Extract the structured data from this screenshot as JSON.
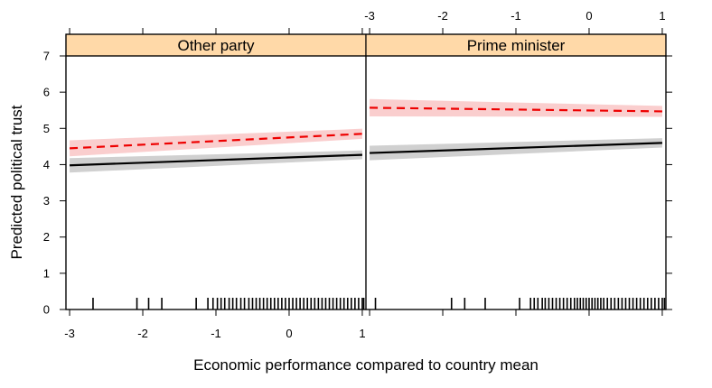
{
  "chart_data": {
    "type": "line",
    "xlabel": "Economic performance compared to country mean",
    "ylabel": "Predicted political trust",
    "xlim": [
      -3.05,
      1.05
    ],
    "ylim": [
      0,
      7
    ],
    "x_ticks": [
      -3,
      -2,
      -1,
      0,
      1
    ],
    "y_ticks": [
      0,
      1,
      2,
      3,
      4,
      5,
      6,
      7
    ],
    "strip_color": "#ffd9a8",
    "panels": [
      {
        "title": "Other party",
        "x_tick_position": "bottom",
        "series": [
          {
            "style": "solid",
            "color": "#000000",
            "band_color": "#c8c8c8",
            "x": [
              -3,
              1
            ],
            "y": [
              3.98,
              4.27
            ],
            "lower": [
              3.78,
              4.15
            ],
            "upper": [
              4.18,
              4.39
            ]
          },
          {
            "style": "dashed",
            "color": "#ee0000",
            "band_color": "#f9c6c6",
            "x": [
              -3,
              1
            ],
            "y": [
              4.45,
              4.85
            ],
            "lower": [
              4.23,
              4.71
            ],
            "upper": [
              4.67,
              4.99
            ]
          }
        ],
        "rug": [
          -2.68,
          -2.08,
          -1.92,
          -1.74,
          -1.27,
          -1.11,
          -1.04,
          -0.98,
          -0.93,
          -0.88,
          -0.82,
          -0.77,
          -0.72,
          -0.66,
          -0.61,
          -0.55,
          -0.5,
          -0.45,
          -0.4,
          -0.35,
          -0.3,
          -0.25,
          -0.2,
          -0.15,
          -0.1,
          -0.05,
          0.0,
          0.05,
          0.1,
          0.15,
          0.2,
          0.25,
          0.3,
          0.35,
          0.4,
          0.45,
          0.5,
          0.55,
          0.6,
          0.65,
          0.7,
          0.75,
          0.8,
          0.85,
          0.9,
          0.95,
          1.0,
          1.02
        ]
      },
      {
        "title": "Prime minister",
        "x_tick_position": "top",
        "series": [
          {
            "style": "solid",
            "color": "#000000",
            "band_color": "#c8c8c8",
            "x": [
              -3,
              1
            ],
            "y": [
              4.32,
              4.6
            ],
            "lower": [
              4.12,
              4.47
            ],
            "upper": [
              4.52,
              4.73
            ]
          },
          {
            "style": "dashed",
            "color": "#ee0000",
            "band_color": "#f9c6c6",
            "x": [
              -3,
              1
            ],
            "y": [
              5.57,
              5.47
            ],
            "lower": [
              5.33,
              5.32
            ],
            "upper": [
              5.81,
              5.62
            ]
          }
        ],
        "rug": [
          -2.92,
          -1.88,
          -1.7,
          -1.42,
          -0.95,
          -0.8,
          -0.75,
          -0.7,
          -0.64,
          -0.6,
          -0.55,
          -0.5,
          -0.45,
          -0.4,
          -0.35,
          -0.3,
          -0.25,
          -0.2,
          -0.16,
          -0.12,
          -0.08,
          -0.04,
          0.0,
          0.04,
          0.08,
          0.12,
          0.16,
          0.2,
          0.25,
          0.3,
          0.35,
          0.4,
          0.45,
          0.5,
          0.55,
          0.6,
          0.65,
          0.7,
          0.75,
          0.8,
          0.85,
          0.9,
          0.95,
          1.0,
          1.03
        ]
      }
    ]
  }
}
